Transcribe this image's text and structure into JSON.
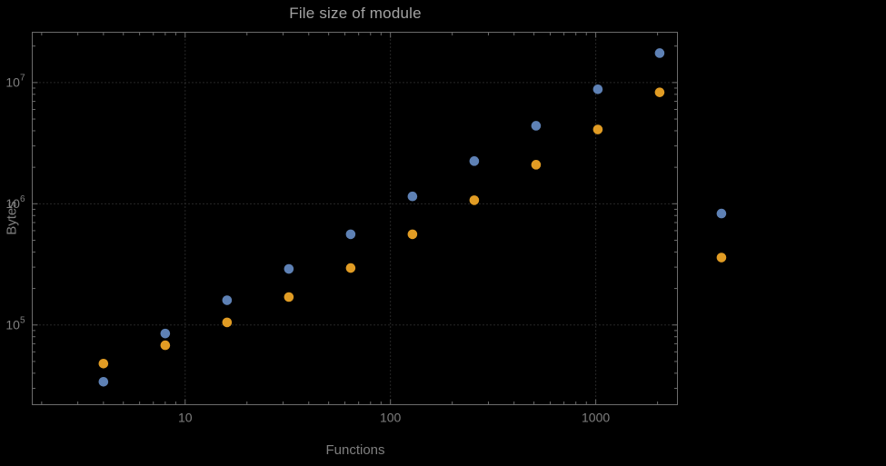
{
  "page": {
    "background_color": "#000000"
  },
  "chart_data": {
    "type": "scatter",
    "title": "File size of module",
    "xlabel": "Functions",
    "ylabel": "Bytes",
    "x_scale": "log",
    "y_scale": "log",
    "grid": "dotted",
    "legend": "none",
    "x_range": [
      1.8,
      2500
    ],
    "y_range": [
      22000,
      26000000
    ],
    "x": [
      4,
      8,
      16,
      32,
      64,
      128,
      256,
      512,
      1024,
      2048,
      4096
    ],
    "series": [
      {
        "name": "blue-series",
        "color": "#5E81B5",
        "values": [
          34000,
          85000,
          160000,
          290000,
          560000,
          1150000,
          2250000,
          4400000,
          8800000,
          17500000,
          830000
        ]
      },
      {
        "name": "orange-series",
        "color": "#E19C24",
        "values": [
          48000,
          68000,
          105000,
          170000,
          295000,
          560000,
          1070000,
          2100000,
          4100000,
          8300000,
          360000
        ]
      }
    ],
    "x_ticks": [
      {
        "value": 10,
        "label": "10"
      },
      {
        "value": 100,
        "label": "100"
      },
      {
        "value": 1000,
        "label": "1000"
      }
    ],
    "y_ticks": [
      {
        "value": 100000,
        "base": "10",
        "exp": "5"
      },
      {
        "value": 1000000,
        "base": "10",
        "exp": "6"
      },
      {
        "value": 10000000,
        "base": "10",
        "exp": "7"
      }
    ]
  }
}
